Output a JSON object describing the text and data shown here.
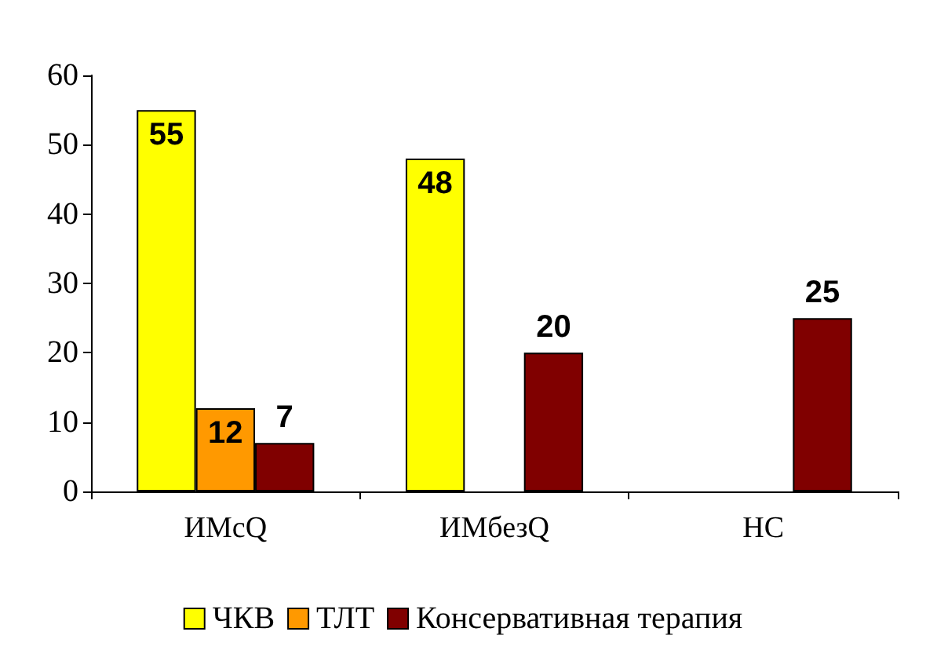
{
  "chart_data": {
    "type": "bar",
    "categories": [
      "ИМсQ",
      "ИМбезQ",
      "НС"
    ],
    "series": [
      {
        "name": "ЧКВ",
        "color": "#ffff00",
        "values": [
          55,
          48,
          null
        ]
      },
      {
        "name": "ТЛТ",
        "color": "#ff9900",
        "values": [
          12,
          null,
          null
        ]
      },
      {
        "name": "Консервативная терапия",
        "color": "#800000",
        "values": [
          7,
          20,
          25
        ]
      }
    ],
    "ylim": [
      0,
      60
    ],
    "yticks": [
      0,
      10,
      20,
      30,
      40,
      50,
      60
    ],
    "grid": false,
    "legend": "bottom",
    "data_labels": true
  }
}
